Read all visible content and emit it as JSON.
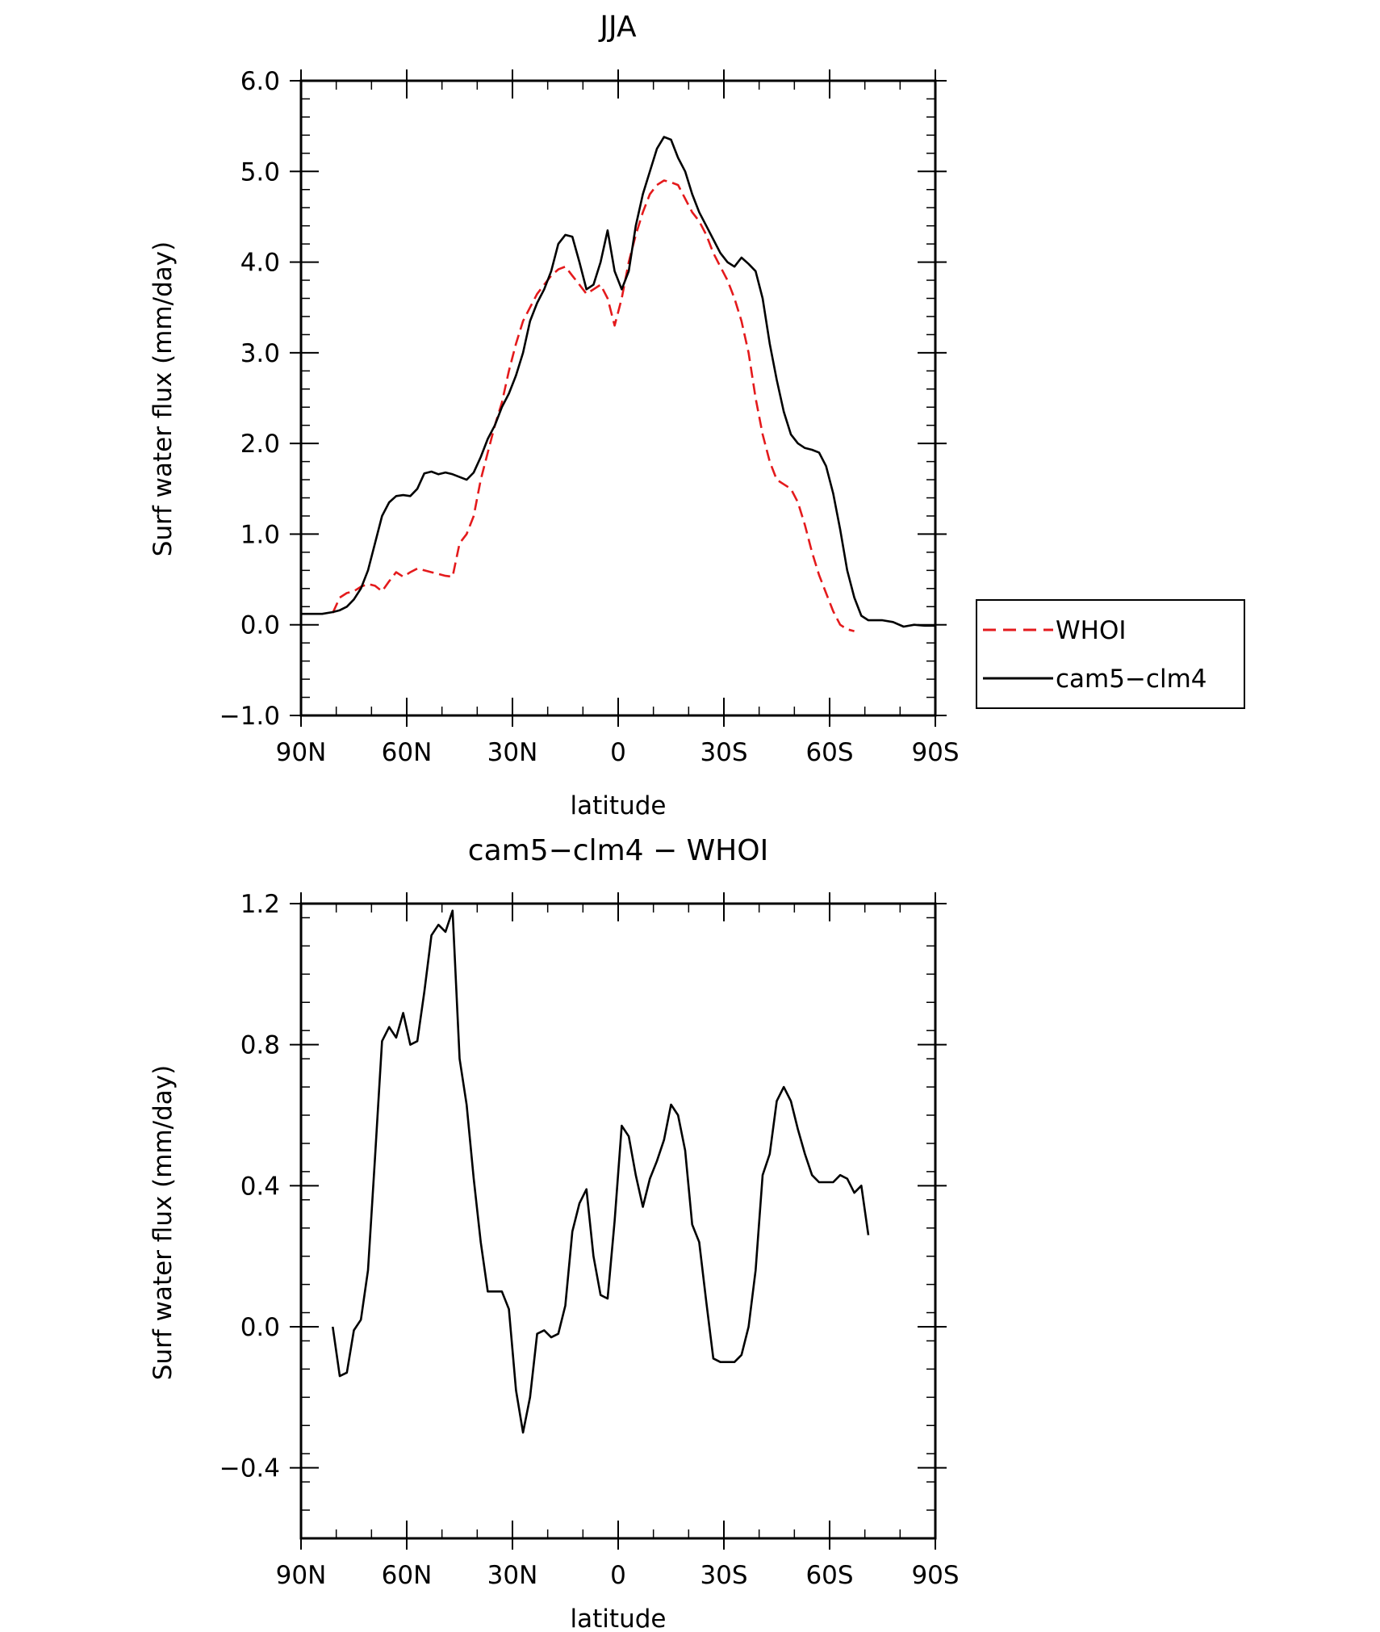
{
  "chart_data": [
    {
      "type": "line",
      "title": "JJA",
      "xlabel": "latitude",
      "ylabel": "Surf water flux (mm/day)",
      "xlim": [
        90,
        -90
      ],
      "ylim": [
        -1.0,
        6.0
      ],
      "x_ticks": [
        90,
        60,
        30,
        0,
        -30,
        -60,
        -90
      ],
      "x_tick_labels": [
        "90N",
        "60N",
        "30N",
        "0",
        "30S",
        "60S",
        "90S"
      ],
      "y_ticks": [
        -1.0,
        0.0,
        1.0,
        2.0,
        3.0,
        4.0,
        5.0,
        6.0
      ],
      "y_tick_labels": [
        "−1.0",
        "0.0",
        "1.0",
        "2.0",
        "3.0",
        "4.0",
        "5.0",
        "6.0"
      ],
      "legend_position": "right",
      "legend": [
        "WHOI",
        "cam5−clm4"
      ],
      "series": [
        {
          "name": "WHOI",
          "color": "#e41a1c",
          "dash": "dashed",
          "x": [
            81,
            79,
            77,
            75,
            73,
            71,
            69,
            67,
            65,
            63,
            61,
            59,
            57,
            55,
            53,
            51,
            49,
            47,
            45,
            43,
            41,
            39,
            37,
            35,
            33,
            31,
            29,
            27,
            25,
            23,
            21,
            19,
            17,
            15,
            13,
            11,
            9,
            7,
            5,
            3,
            1,
            -1,
            -3,
            -5,
            -7,
            -9,
            -11,
            -13,
            -15,
            -17,
            -19,
            -21,
            -23,
            -25,
            -27,
            -29,
            -31,
            -33,
            -35,
            -37,
            -39,
            -41,
            -43,
            -45,
            -47,
            -49,
            -51,
            -53,
            -55,
            -57,
            -59,
            -61,
            -63,
            -65,
            -67,
            -69,
            -71
          ],
          "y": [
            0.13,
            0.3,
            0.35,
            0.37,
            0.42,
            0.45,
            0.43,
            0.37,
            0.48,
            0.58,
            0.53,
            0.58,
            0.62,
            0.6,
            0.58,
            0.56,
            0.54,
            0.53,
            0.9,
            1.0,
            1.2,
            1.6,
            1.9,
            2.2,
            2.45,
            2.8,
            3.1,
            3.35,
            3.5,
            3.65,
            3.75,
            3.85,
            3.92,
            3.95,
            3.85,
            3.75,
            3.65,
            3.7,
            3.75,
            3.6,
            3.3,
            3.6,
            4.0,
            4.3,
            4.55,
            4.75,
            4.85,
            4.9,
            4.88,
            4.85,
            4.7,
            4.55,
            4.45,
            4.3,
            4.1,
            3.95,
            3.8,
            3.6,
            3.35,
            3.0,
            2.5,
            2.1,
            1.8,
            1.6,
            1.55,
            1.5,
            1.35,
            1.1,
            0.8,
            0.55,
            0.35,
            0.15,
            0.0,
            -0.05,
            -0.07,
            null,
            null
          ]
        },
        {
          "name": "cam5−clm4",
          "color": "#000000",
          "dash": "solid",
          "x": [
            90,
            87,
            84,
            81,
            79,
            77,
            75,
            73,
            71,
            69,
            67,
            65,
            63,
            61,
            59,
            57,
            55,
            53,
            51,
            49,
            47,
            45,
            43,
            41,
            39,
            37,
            35,
            33,
            31,
            29,
            27,
            25,
            23,
            21,
            19,
            17,
            15,
            13,
            11,
            9,
            7,
            5,
            3,
            1,
            -1,
            -3,
            -5,
            -7,
            -9,
            -11,
            -13,
            -15,
            -17,
            -19,
            -21,
            -23,
            -25,
            -27,
            -29,
            -31,
            -33,
            -35,
            -37,
            -39,
            -41,
            -43,
            -45,
            -47,
            -49,
            -51,
            -53,
            -55,
            -57,
            -59,
            -61,
            -63,
            -65,
            -67,
            -69,
            -71,
            -75,
            -78,
            -81,
            -84,
            -87,
            -90
          ],
          "y": [
            0.12,
            0.12,
            0.12,
            0.14,
            0.16,
            0.2,
            0.28,
            0.4,
            0.6,
            0.9,
            1.2,
            1.35,
            1.42,
            1.43,
            1.42,
            1.5,
            1.67,
            1.69,
            1.66,
            1.68,
            1.66,
            1.63,
            1.6,
            1.68,
            1.85,
            2.05,
            2.2,
            2.4,
            2.55,
            2.75,
            3.0,
            3.35,
            3.55,
            3.7,
            3.9,
            4.2,
            4.3,
            4.28,
            4.0,
            3.7,
            3.75,
            4.0,
            4.35,
            3.9,
            3.7,
            3.9,
            4.4,
            4.75,
            5.0,
            5.25,
            5.38,
            5.35,
            5.15,
            5.0,
            4.75,
            4.55,
            4.4,
            4.25,
            4.1,
            4.0,
            3.95,
            4.05,
            3.98,
            3.9,
            3.6,
            3.1,
            2.7,
            2.35,
            2.1,
            2.0,
            1.95,
            1.93,
            1.9,
            1.75,
            1.45,
            1.05,
            0.6,
            0.3,
            0.1,
            0.05,
            0.05,
            0.03,
            -0.02,
            0.0,
            -0.01,
            -0.01
          ]
        }
      ]
    },
    {
      "type": "line",
      "title": "cam5−clm4 − WHOI",
      "xlabel": "latitude",
      "ylabel": "Surf water flux (mm/day)",
      "xlim": [
        90,
        -90
      ],
      "ylim": [
        -0.6,
        1.2
      ],
      "x_ticks": [
        90,
        60,
        30,
        0,
        -30,
        -60,
        -90
      ],
      "x_tick_labels": [
        "90N",
        "60N",
        "30N",
        "0",
        "30S",
        "60S",
        "90S"
      ],
      "y_ticks": [
        -0.4,
        0.0,
        0.4,
        0.8,
        1.2
      ],
      "y_tick_labels": [
        "−0.4",
        "0.0",
        "0.4",
        "0.8",
        "1.2"
      ],
      "series": [
        {
          "color": "#000000",
          "dash": "solid",
          "x": [
            81,
            79,
            77,
            75,
            73,
            71,
            69,
            67,
            65,
            63,
            61,
            59,
            57,
            55,
            53,
            51,
            49,
            47,
            45,
            43,
            41,
            39,
            37,
            35,
            33,
            31,
            29,
            27,
            25,
            23,
            21,
            19,
            17,
            15,
            13,
            11,
            9,
            7,
            5,
            3,
            1,
            -1,
            -3,
            -5,
            -7,
            -9,
            -11,
            -13,
            -15,
            -17,
            -19,
            -21,
            -23,
            -25,
            -27,
            -29,
            -31,
            -33,
            -35,
            -37,
            -39,
            -41,
            -43,
            -45,
            -47,
            -49,
            -51,
            -53,
            -55,
            -57,
            -59,
            -61,
            -63,
            -65,
            -67,
            -69,
            -71
          ],
          "y": [
            0.0,
            -0.14,
            -0.13,
            -0.01,
            0.02,
            0.16,
            0.48,
            0.81,
            0.85,
            0.82,
            0.89,
            0.8,
            0.81,
            0.95,
            1.11,
            1.14,
            1.12,
            1.18,
            0.76,
            0.63,
            0.42,
            0.24,
            0.1,
            0.1,
            0.1,
            0.05,
            -0.18,
            -0.3,
            -0.2,
            -0.02,
            -0.01,
            -0.03,
            -0.02,
            0.06,
            0.27,
            0.35,
            0.39,
            0.2,
            0.09,
            0.08,
            0.3,
            0.57,
            0.54,
            0.43,
            0.34,
            0.42,
            0.47,
            0.53,
            0.63,
            0.6,
            0.5,
            0.29,
            0.24,
            0.07,
            -0.09,
            -0.1,
            -0.1,
            -0.1,
            -0.08,
            0.0,
            0.16,
            0.43,
            0.49,
            0.64,
            0.68,
            0.64,
            0.56,
            0.49,
            0.43,
            0.41,
            0.41,
            0.41,
            0.43,
            0.42,
            0.38,
            0.4,
            0.26
          ]
        }
      ]
    }
  ]
}
